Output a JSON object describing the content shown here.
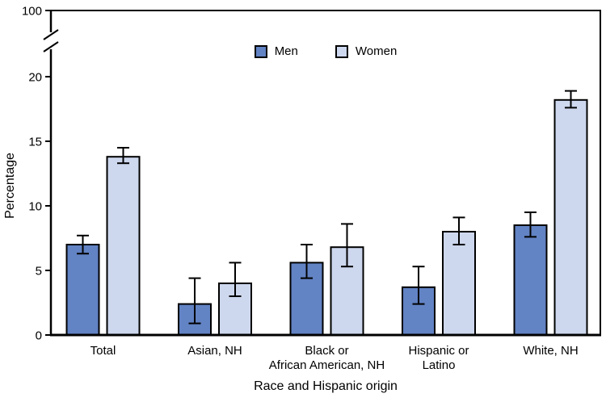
{
  "chart_data": {
    "type": "bar",
    "title": "",
    "xlabel": "Race and Hispanic origin",
    "ylabel": "Percentage",
    "categories": [
      "Total",
      "Asian, NH",
      "Black or African American, NH",
      "Hispanic or Latino",
      "White, NH"
    ],
    "category_label_lines": [
      [
        "Total"
      ],
      [
        "Asian, NH"
      ],
      [
        "Black or",
        "African American, NH"
      ],
      [
        "Hispanic or",
        "Latino"
      ],
      [
        "White, NH"
      ]
    ],
    "series": [
      {
        "name": "Men",
        "color": "#6283c4",
        "values": [
          7.0,
          2.4,
          5.6,
          3.7,
          8.5
        ],
        "ci_low": [
          6.3,
          0.9,
          4.4,
          2.4,
          7.6
        ],
        "ci_high": [
          7.7,
          4.4,
          7.0,
          5.3,
          9.5
        ]
      },
      {
        "name": "Women",
        "color": "#cdd7ed",
        "values": [
          13.8,
          4.0,
          6.8,
          8.0,
          18.2
        ],
        "ci_low": [
          13.3,
          3.0,
          5.3,
          7.0,
          17.6
        ],
        "ci_high": [
          14.5,
          5.6,
          8.6,
          9.1,
          18.9
        ]
      }
    ],
    "y_axis": {
      "tick_labels": [
        "100",
        "20",
        "15",
        "10",
        "5",
        "0"
      ],
      "tick_values": [
        100,
        20,
        15,
        10,
        5,
        0
      ],
      "axis_break_between": [
        20,
        100
      ]
    },
    "error_bars": true,
    "grid": false,
    "legend_position": "top-center",
    "colors": {
      "axis": "#000000",
      "bar_border": "#000000",
      "error_bar": "#000000"
    }
  }
}
